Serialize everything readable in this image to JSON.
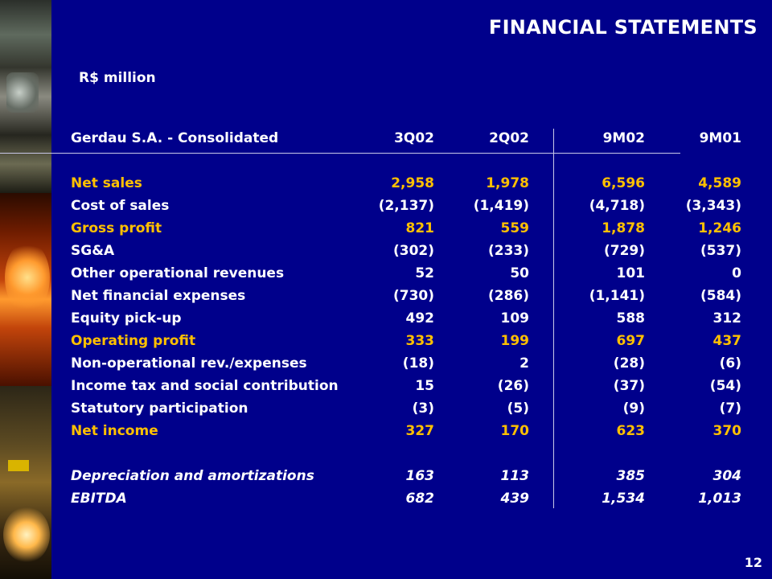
{
  "title": "FINANCIAL STATEMENTS",
  "unit_label": "R$ million",
  "page_number": "12",
  "colors": {
    "background": "#00008b",
    "highlight": "#ffc000",
    "text": "#ffffff"
  },
  "table": {
    "header": {
      "label": "Gerdau S.A. - Consolidated",
      "col1": "3Q02",
      "col2": "2Q02",
      "col3": "9M02",
      "col4": "9M01"
    },
    "rows": [
      {
        "label": "Net sales",
        "v1": "2,958",
        "v2": "1,978",
        "v3": "6,596",
        "v4": "4,589"
      },
      {
        "label": "Cost of sales",
        "v1": "(2,137)",
        "v2": "(1,419)",
        "v3": "(4,718)",
        "v4": "(3,343)"
      },
      {
        "label": "Gross profit",
        "v1": "821",
        "v2": "559",
        "v3": "1,878",
        "v4": "1,246"
      },
      {
        "label": "SG&A",
        "v1": "(302)",
        "v2": "(233)",
        "v3": "(729)",
        "v4": "(537)"
      },
      {
        "label": "Other operational revenues",
        "v1": "52",
        "v2": "50",
        "v3": "101",
        "v4": "0"
      },
      {
        "label": "Net financial expenses",
        "v1": "(730)",
        "v2": "(286)",
        "v3": "(1,141)",
        "v4": "(584)"
      },
      {
        "label": "Equity pick-up",
        "v1": "492",
        "v2": "109",
        "v3": "588",
        "v4": "312"
      },
      {
        "label": "Operating profit",
        "v1": "333",
        "v2": "199",
        "v3": "697",
        "v4": "437"
      },
      {
        "label": "Non-operational rev./expenses",
        "v1": "(18)",
        "v2": "2",
        "v3": "(28)",
        "v4": "(6)"
      },
      {
        "label": "Income tax and social contribution",
        "v1": "15",
        "v2": "(26)",
        "v3": "(37)",
        "v4": "(54)"
      },
      {
        "label": "Statutory participation",
        "v1": "(3)",
        "v2": "(5)",
        "v3": "(9)",
        "v4": "(7)"
      },
      {
        "label": "Net income",
        "v1": "327",
        "v2": "170",
        "v3": "623",
        "v4": "370"
      }
    ],
    "extra_rows": [
      {
        "label": "Depreciation and amortizations",
        "v1": "163",
        "v2": "113",
        "v3": "385",
        "v4": "304"
      },
      {
        "label": "EBITDA",
        "v1": "682",
        "v2": "439",
        "v3": "1,534",
        "v4": "1,013"
      }
    ]
  }
}
